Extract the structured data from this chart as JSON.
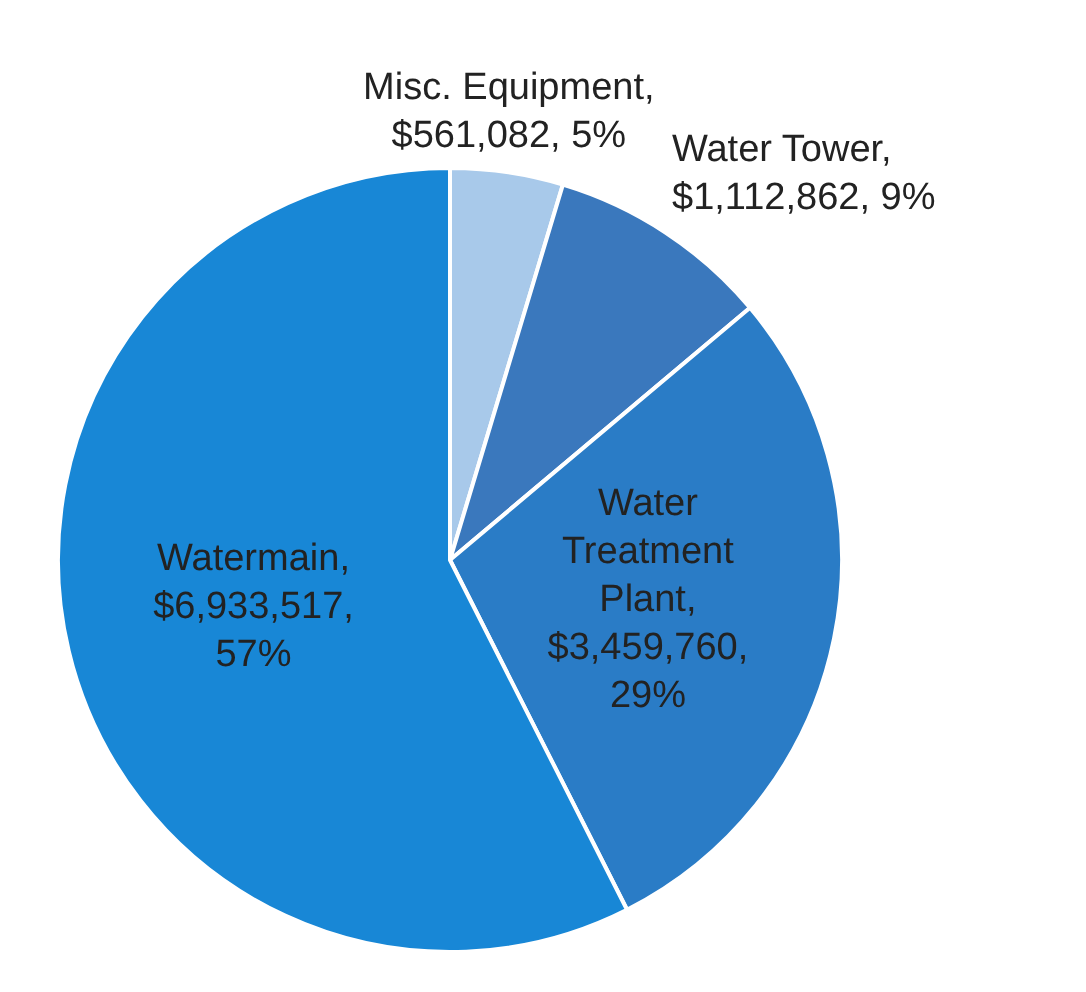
{
  "chart_data": {
    "type": "pie",
    "categories": [
      "Misc. Equipment",
      "Water Tower",
      "Water Treatment Plant",
      "Watermain"
    ],
    "values": [
      561082,
      1112862,
      3459760,
      6933517
    ],
    "colors": [
      "#a8c9ea",
      "#3a78bd",
      "#2a7cc6",
      "#1887d6"
    ],
    "value_labels": [
      ", $561,082, 5%",
      ", $1,112,862, 9%",
      ", $3,459,760, 29%",
      ", $6,933,517, 57%"
    ]
  }
}
